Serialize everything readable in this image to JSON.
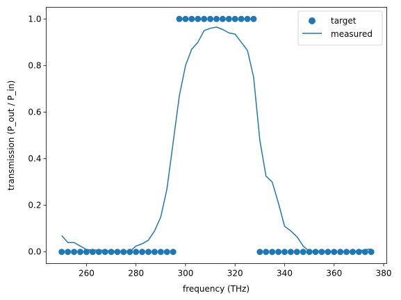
{
  "chart_data": {
    "type": "scatter",
    "xlabel": "frequency (THz)",
    "ylabel": "transmission (P_out / P_in)",
    "xlim": [
      243.75,
      381.25
    ],
    "ylim": [
      -0.05,
      1.05
    ],
    "xticks": [
      260,
      280,
      300,
      320,
      340,
      360,
      380
    ],
    "xtick_labels": [
      "260",
      "280",
      "300",
      "320",
      "340",
      "360",
      "380"
    ],
    "yticks": [
      0.0,
      0.2,
      0.4,
      0.6,
      0.8,
      1.0
    ],
    "ytick_labels": [
      "0.0",
      "0.2",
      "0.4",
      "0.6",
      "0.8",
      "1.0"
    ],
    "grid": false,
    "legend_position": "top-right",
    "color": "#1f77b4",
    "series": [
      {
        "name": "target",
        "kind": "scatter",
        "x": [
          250.0,
          252.5,
          255.0,
          257.5,
          260.0,
          262.5,
          265.0,
          267.5,
          270.0,
          272.5,
          275.0,
          277.5,
          280.0,
          282.5,
          285.0,
          287.5,
          290.0,
          292.5,
          295.0,
          297.5,
          300.0,
          302.5,
          305.0,
          307.5,
          310.0,
          312.5,
          315.0,
          317.5,
          320.0,
          322.5,
          325.0,
          327.5,
          330.0,
          332.5,
          335.0,
          337.5,
          340.0,
          342.5,
          345.0,
          347.5,
          350.0,
          352.5,
          355.0,
          357.5,
          360.0,
          362.5,
          365.0,
          367.5,
          370.0,
          372.5,
          375.0
        ],
        "y": [
          0,
          0,
          0,
          0,
          0,
          0,
          0,
          0,
          0,
          0,
          0,
          0,
          0,
          0,
          0,
          0,
          0,
          0,
          0,
          1,
          1,
          1,
          1,
          1,
          1,
          1,
          1,
          1,
          1,
          1,
          1,
          1,
          0,
          0,
          0,
          0,
          0,
          0,
          0,
          0,
          0,
          0,
          0,
          0,
          0,
          0,
          0,
          0,
          0,
          0,
          0
        ]
      },
      {
        "name": "measured",
        "kind": "line",
        "x": [
          250.0,
          252.5,
          255.0,
          257.5,
          260.0,
          262.5,
          265.0,
          267.5,
          270.0,
          272.5,
          275.0,
          277.5,
          280.0,
          282.5,
          285.0,
          287.5,
          290.0,
          292.5,
          295.0,
          297.5,
          300.0,
          302.5,
          305.0,
          307.5,
          310.0,
          312.5,
          315.0,
          317.5,
          320.0,
          322.5,
          325.0,
          327.5,
          330.0,
          332.5,
          335.0,
          337.5,
          340.0,
          342.5,
          345.0,
          347.5,
          350.0,
          352.5,
          355.0,
          357.5,
          360.0,
          362.5,
          365.0,
          367.5,
          370.0,
          372.5,
          375.0
        ],
        "y": [
          0.07,
          0.04,
          0.04,
          0.025,
          0.01,
          0.008,
          0.008,
          0.006,
          0.004,
          0.002,
          0.002,
          0.002,
          0.025,
          0.035,
          0.05,
          0.09,
          0.15,
          0.27,
          0.47,
          0.67,
          0.8,
          0.87,
          0.9,
          0.95,
          0.96,
          0.965,
          0.955,
          0.94,
          0.935,
          0.9,
          0.865,
          0.75,
          0.48,
          0.325,
          0.3,
          0.21,
          0.11,
          0.09,
          0.065,
          0.025,
          0.002,
          0.005,
          0.003,
          0.002,
          0.001,
          0.001,
          0.001,
          0.002,
          0.003,
          0.01,
          0.012
        ]
      }
    ]
  }
}
